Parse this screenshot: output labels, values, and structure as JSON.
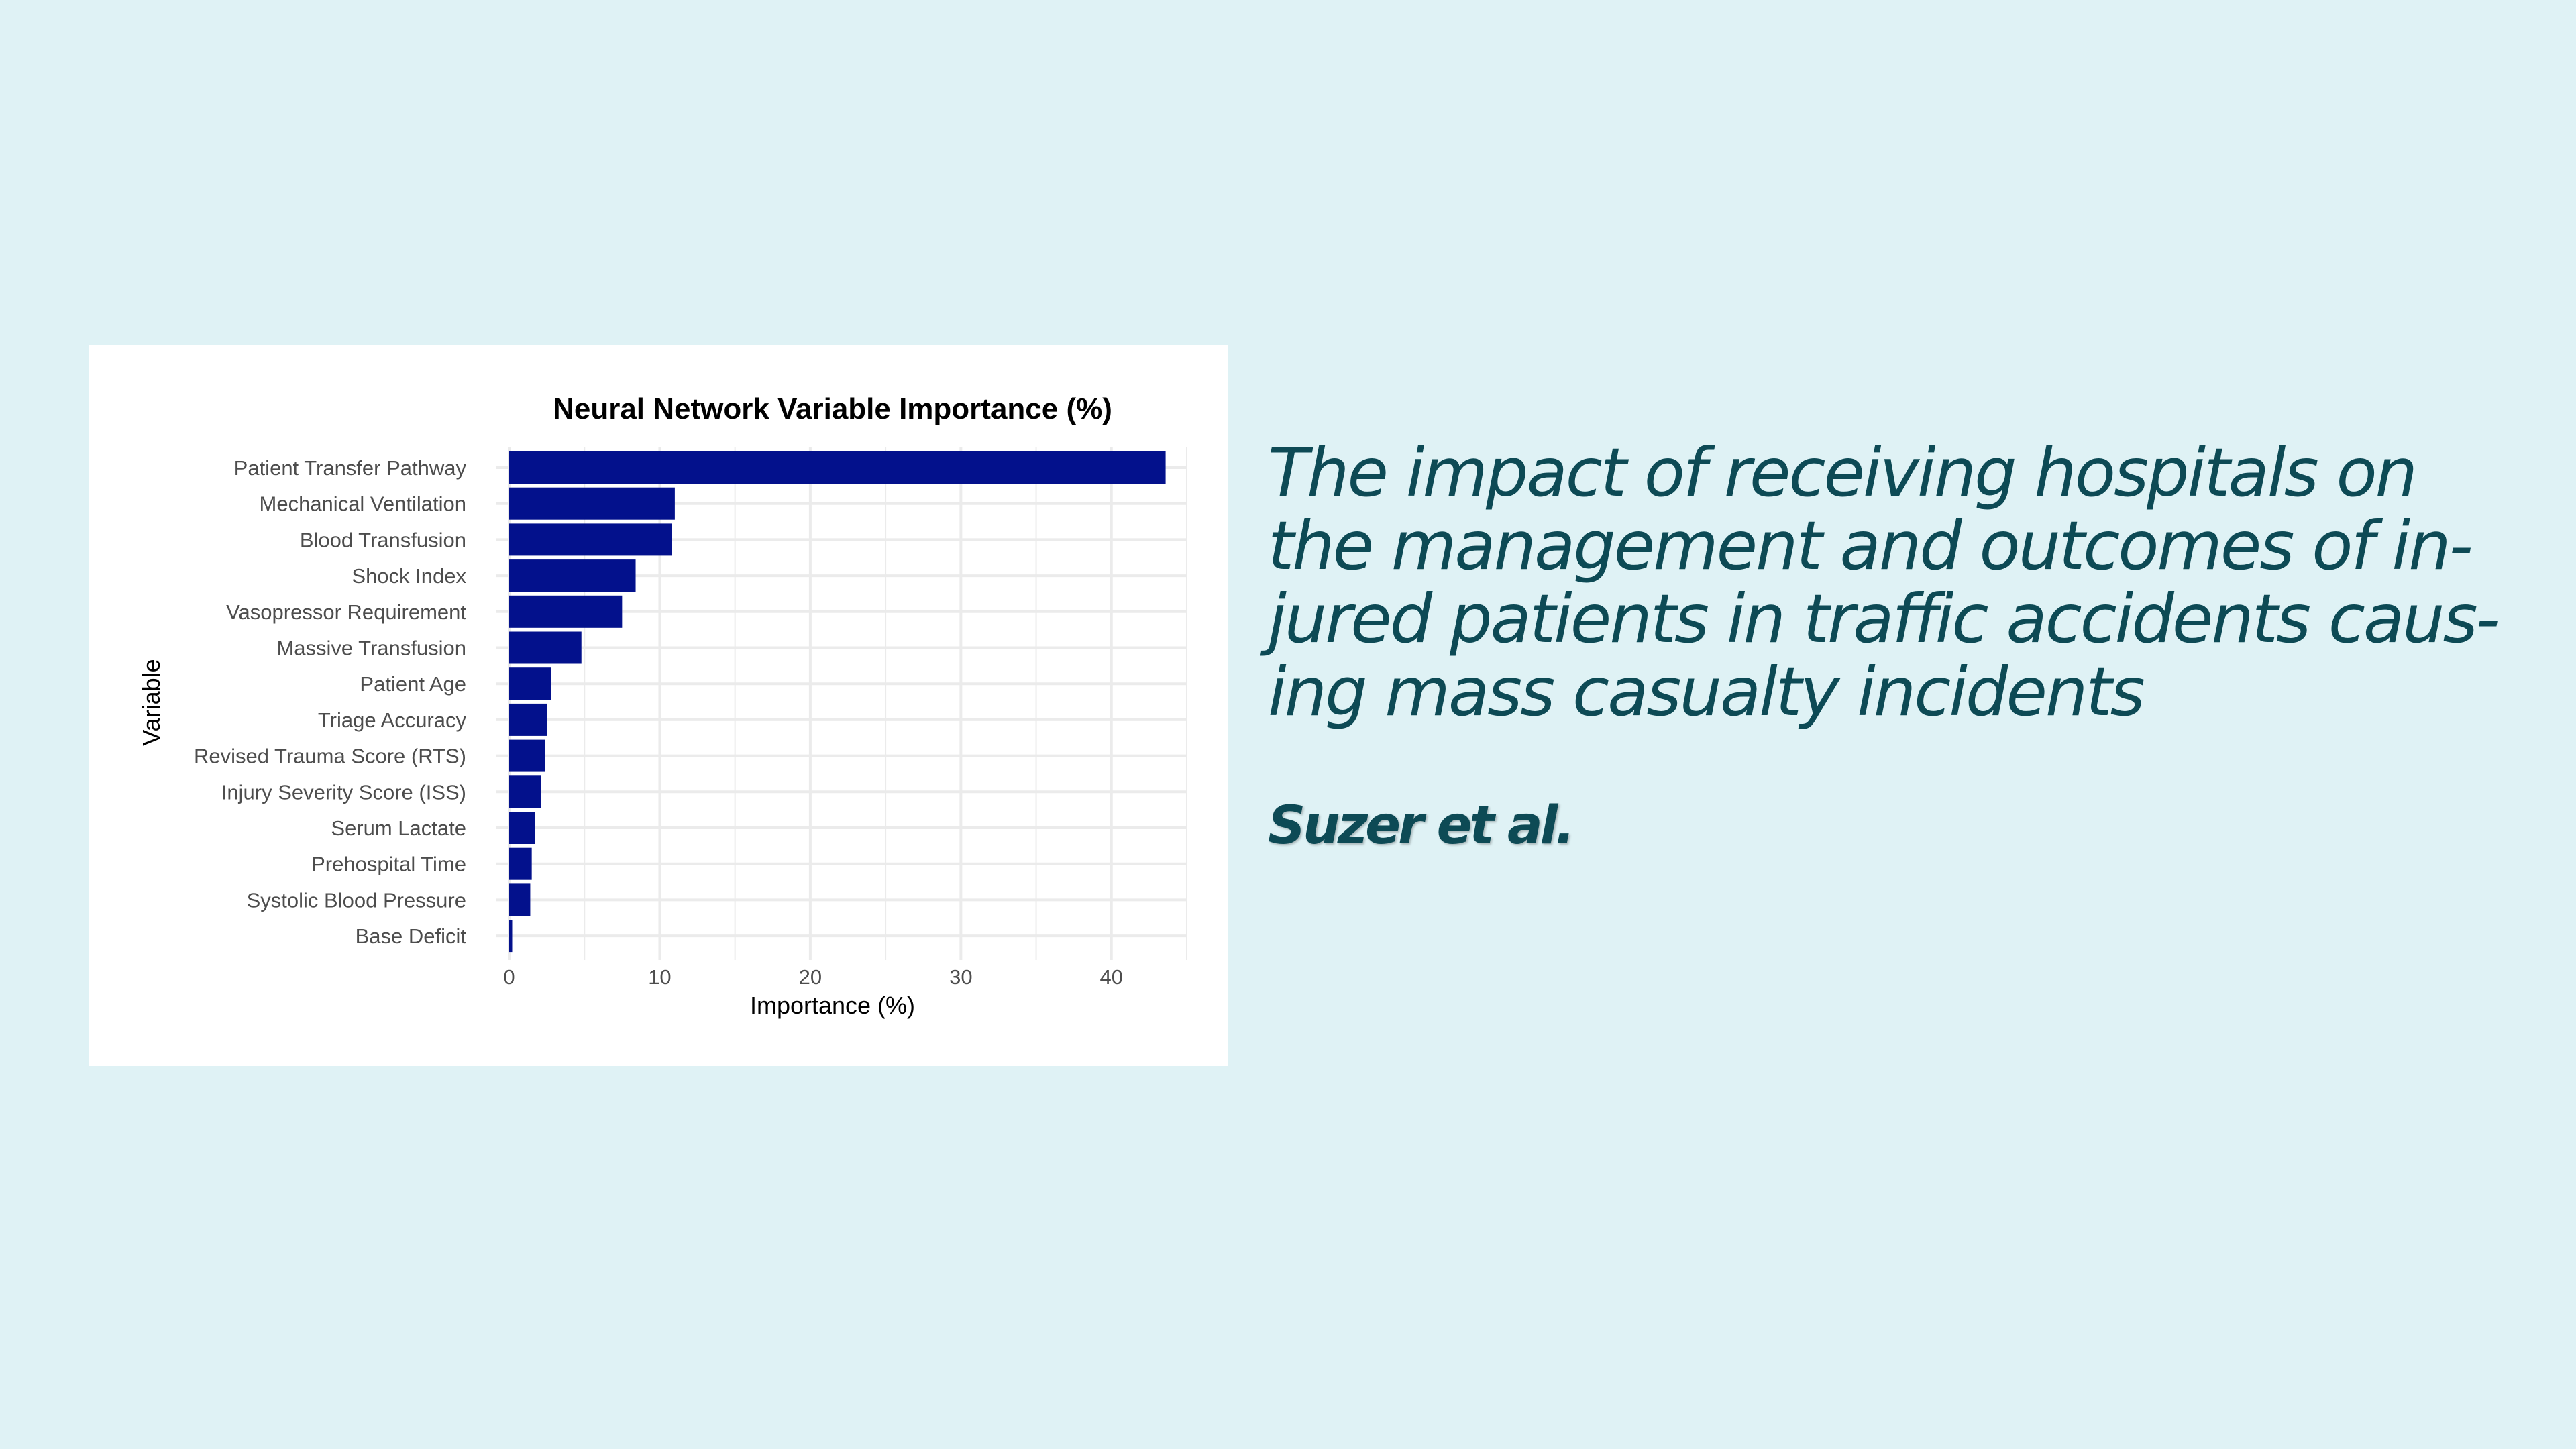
{
  "headline": "The impact of receiving hospitals on\nthe management and outcomes of in-\njured patients in traffic accidents caus-\ning mass casualty incidents",
  "authors": "Suzer et al.",
  "chart_data": {
    "type": "bar",
    "orientation": "horizontal",
    "title": "Neural Network Variable Importance (%)",
    "xlabel": "Importance (%)",
    "ylabel": "Variable",
    "xlim": [
      0,
      45
    ],
    "xticks": [
      0,
      10,
      20,
      30,
      40
    ],
    "grid": true,
    "bar_color": "#03118c",
    "categories": [
      "Patient Transfer Pathway",
      "Mechanical Ventilation",
      "Blood Transfusion",
      "Shock Index",
      "Vasopressor Requirement",
      "Massive Transfusion",
      "Patient Age",
      "Triage Accuracy",
      "Revised Trauma Score (RTS)",
      "Injury Severity Score (ISS)",
      "Serum Lactate",
      "Prehospital Time",
      "Systolic Blood Pressure",
      "Base Deficit"
    ],
    "values": [
      43.6,
      11.0,
      10.8,
      8.4,
      7.5,
      4.8,
      2.8,
      2.5,
      2.4,
      2.1,
      1.7,
      1.5,
      1.4,
      0.2
    ]
  }
}
